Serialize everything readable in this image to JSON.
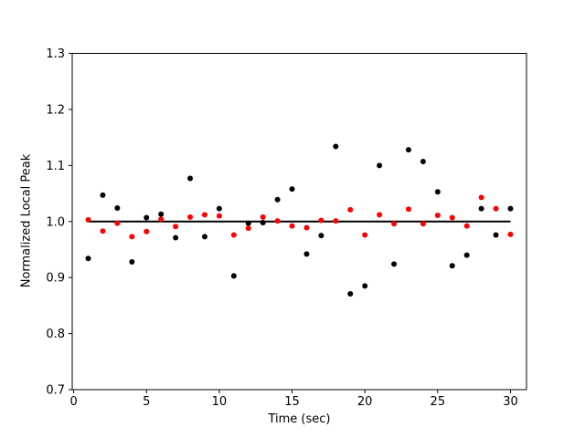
{
  "figure": {
    "background": "#ffffff",
    "spine_color": "#000000",
    "tick_color": "#000000"
  },
  "chart_data": {
    "type": "scatter",
    "title": "",
    "xlabel": "Time (sec)",
    "ylabel": "Normalized Local Peak",
    "xlim": [
      -0.1,
      31.1
    ],
    "ylim": [
      0.7,
      1.3
    ],
    "xticks": [
      0,
      5,
      10,
      15,
      20,
      25,
      30
    ],
    "xtick_labels": [
      "0",
      "5",
      "10",
      "15",
      "20",
      "25",
      "30"
    ],
    "yticks": [
      0.7,
      0.8,
      0.9,
      1.0,
      1.1,
      1.2,
      1.3
    ],
    "ytick_labels": [
      "0.7",
      "0.8",
      "0.9",
      "1.0",
      "1.1",
      "1.2",
      "1.3"
    ],
    "grid": false,
    "legend": null,
    "x": [
      1,
      2,
      3,
      4,
      5,
      6,
      7,
      8,
      9,
      10,
      11,
      12,
      13,
      14,
      15,
      16,
      17,
      18,
      19,
      20,
      21,
      22,
      23,
      24,
      25,
      26,
      27,
      28,
      29,
      30
    ],
    "series": [
      {
        "name": "black-dots",
        "marker": "circle",
        "color": "#000000",
        "values": [
          0.934,
          1.047,
          1.024,
          0.928,
          1.007,
          1.013,
          0.971,
          1.077,
          0.973,
          1.023,
          0.903,
          0.997,
          0.998,
          1.039,
          1.058,
          0.942,
          0.975,
          1.134,
          0.871,
          0.885,
          1.1,
          0.924,
          1.128,
          1.107,
          1.053,
          0.921,
          0.94,
          1.023,
          0.976,
          1.023
        ]
      },
      {
        "name": "red-dots",
        "marker": "circle",
        "color": "#ff0000",
        "values": [
          1.003,
          0.983,
          0.997,
          0.973,
          0.982,
          1.004,
          0.991,
          1.008,
          1.012,
          1.01,
          0.976,
          0.988,
          1.008,
          1.001,
          0.992,
          0.989,
          1.002,
          1.001,
          1.021,
          0.976,
          1.012,
          0.996,
          1.022,
          0.996,
          1.011,
          1.007,
          0.992,
          1.043,
          1.023,
          0.977
        ]
      }
    ],
    "reference_line": {
      "y": 1.0,
      "x_start": 1,
      "x_end": 30,
      "color": "#000000",
      "width": 2
    }
  }
}
